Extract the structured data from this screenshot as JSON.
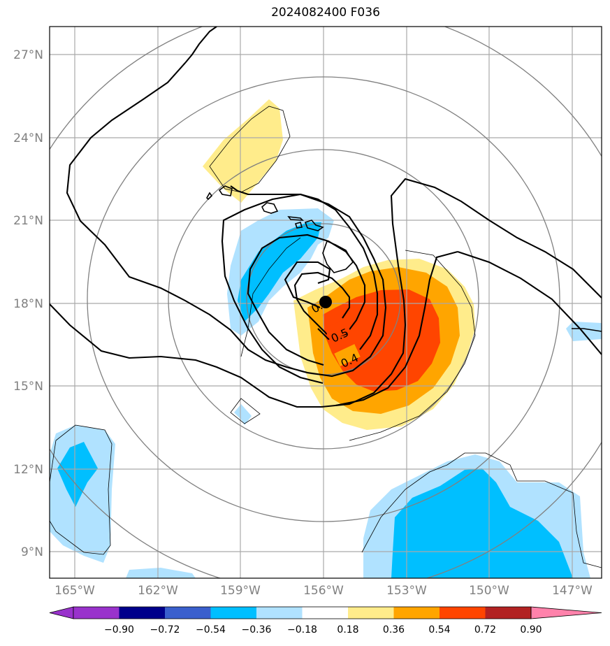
{
  "title": "2024082400 F036",
  "lon_ticks": [
    "165°W",
    "162°W",
    "159°W",
    "156°W",
    "153°W",
    "150°W",
    "147°W"
  ],
  "lat_ticks": [
    "27°N",
    "24°N",
    "21°N",
    "18°N",
    "15°N",
    "12°N",
    "9°N"
  ],
  "colorbar": {
    "tick_labels": [
      "−0.90",
      "−0.72",
      "−0.54",
      "−0.36",
      "−0.18",
      "0.18",
      "0.36",
      "0.54",
      "0.72",
      "0.90"
    ],
    "colors": [
      "#9932cc",
      "#00008b",
      "#3a5fcd",
      "#00bfff",
      "#b0e2ff",
      "#ffffff",
      "#ffec8b",
      "#ffa500",
      "#ff4500",
      "#b22222",
      "#ff82ab"
    ]
  },
  "contour_labels": [
    "0.5",
    "0.4",
    "0."
  ],
  "storm_center": {
    "lon": -156.0,
    "lat": 18.1
  }
}
